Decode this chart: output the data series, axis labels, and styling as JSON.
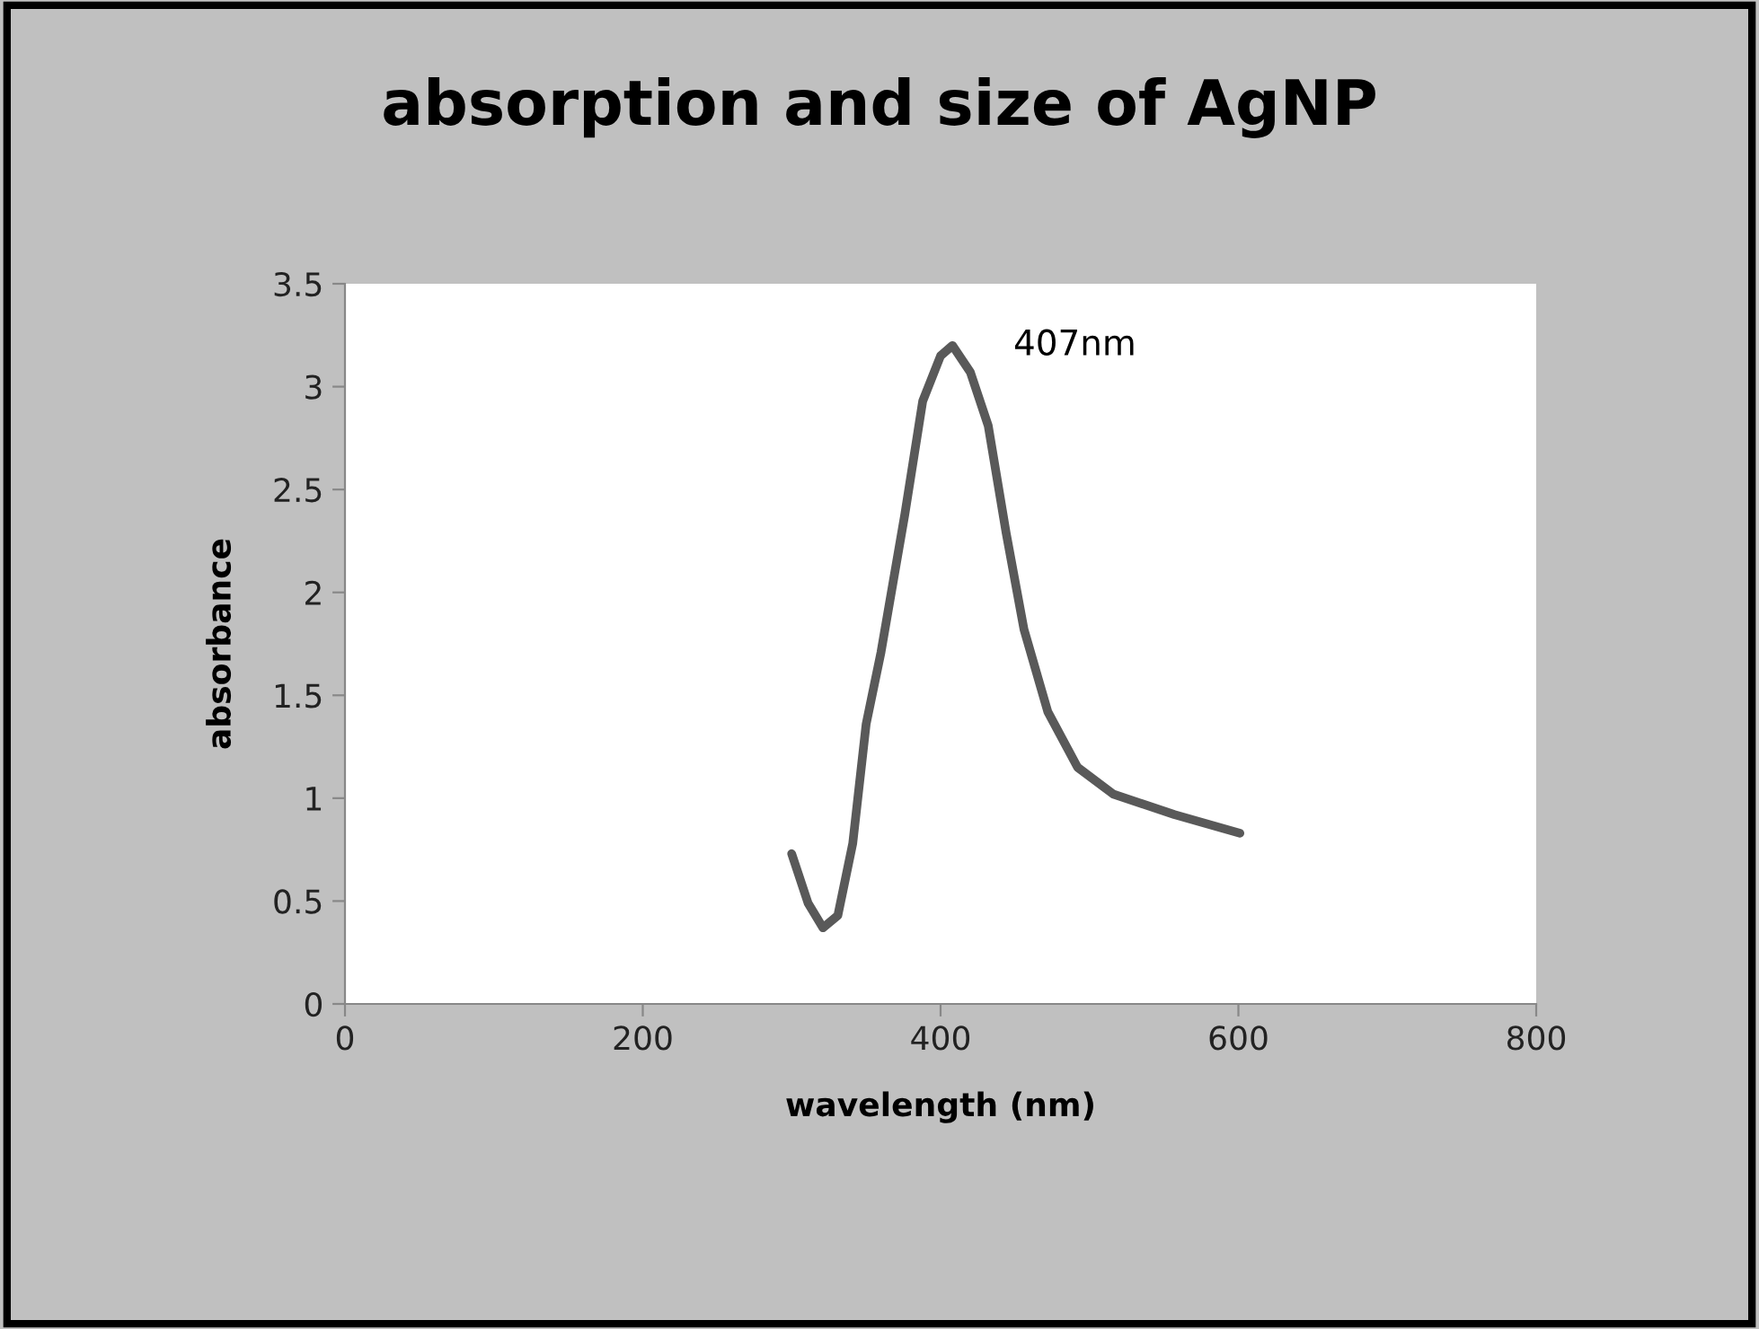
{
  "chart_data": {
    "type": "line",
    "title": "absorption and size of AgNP",
    "xlabel": "wavelength (nm)",
    "ylabel": "absorbance",
    "series": [
      {
        "color": "#595959",
        "x": [
          300,
          311,
          321,
          331,
          341,
          350,
          360,
          376,
          388,
          400,
          408,
          420,
          432,
          444,
          456,
          472,
          492,
          516,
          557,
          601
        ],
        "values": [
          0.73,
          0.49,
          0.37,
          0.43,
          0.78,
          1.36,
          1.71,
          2.38,
          2.93,
          3.15,
          3.2,
          3.07,
          2.81,
          2.29,
          1.82,
          1.42,
          1.15,
          1.02,
          0.92,
          0.83
        ]
      }
    ],
    "annotations": [
      {
        "text": "407nm",
        "x": 407,
        "y": 3.2
      }
    ],
    "xlim": [
      0,
      800
    ],
    "xticks": [
      0,
      200,
      400,
      600,
      800
    ],
    "ylim": [
      0,
      3.5
    ],
    "yticks": [
      0,
      0.5,
      1,
      1.5,
      2,
      2.5,
      3,
      3.5
    ],
    "grid": false,
    "legend": false,
    "marker": "none",
    "line_style": "solid"
  }
}
